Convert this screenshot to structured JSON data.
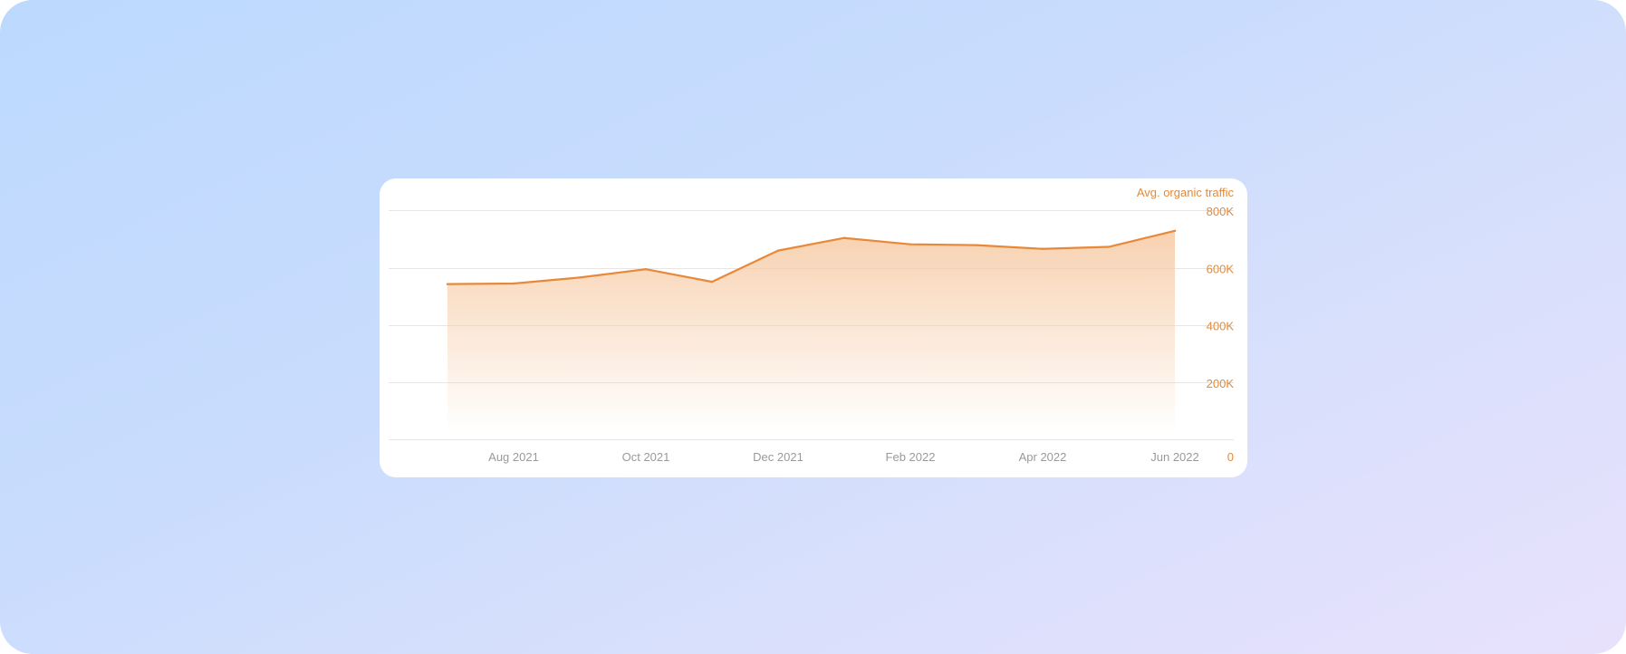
{
  "chart_data": {
    "type": "area",
    "y_axis_title": "Avg. organic traffic",
    "x_tick_labels": [
      "Aug 2021",
      "Oct 2021",
      "Dec 2021",
      "Feb 2022",
      "Apr 2022",
      "Jun 2022"
    ],
    "y_tick_labels": [
      "800K",
      "600K",
      "400K",
      "200K",
      "0"
    ],
    "y_ticks": [
      800000,
      600000,
      400000,
      200000,
      0
    ],
    "ylim": [
      0,
      800000
    ],
    "grid": true,
    "y_axis_position": "right",
    "x": [
      "2021-07",
      "2021-08",
      "2021-09",
      "2021-10",
      "2021-11",
      "2021-12",
      "2022-01",
      "2022-02",
      "2022-03",
      "2022-04",
      "2022-05",
      "2022-06"
    ],
    "x_tick_x": [
      "2021-08",
      "2021-10",
      "2021-12",
      "2022-02",
      "2022-04",
      "2022-06"
    ],
    "series": [
      {
        "values": [
          545000,
          547000,
          568000,
          597000,
          553000,
          662000,
          706000,
          684000,
          681000,
          668000,
          675000,
          731000
        ]
      }
    ],
    "colors": {
      "line": "#e8893a",
      "fill": "#f6c9a2",
      "axis_text": "#e08a3c",
      "x_text": "#9a9a9a",
      "grid": "#e6e6e6"
    }
  }
}
